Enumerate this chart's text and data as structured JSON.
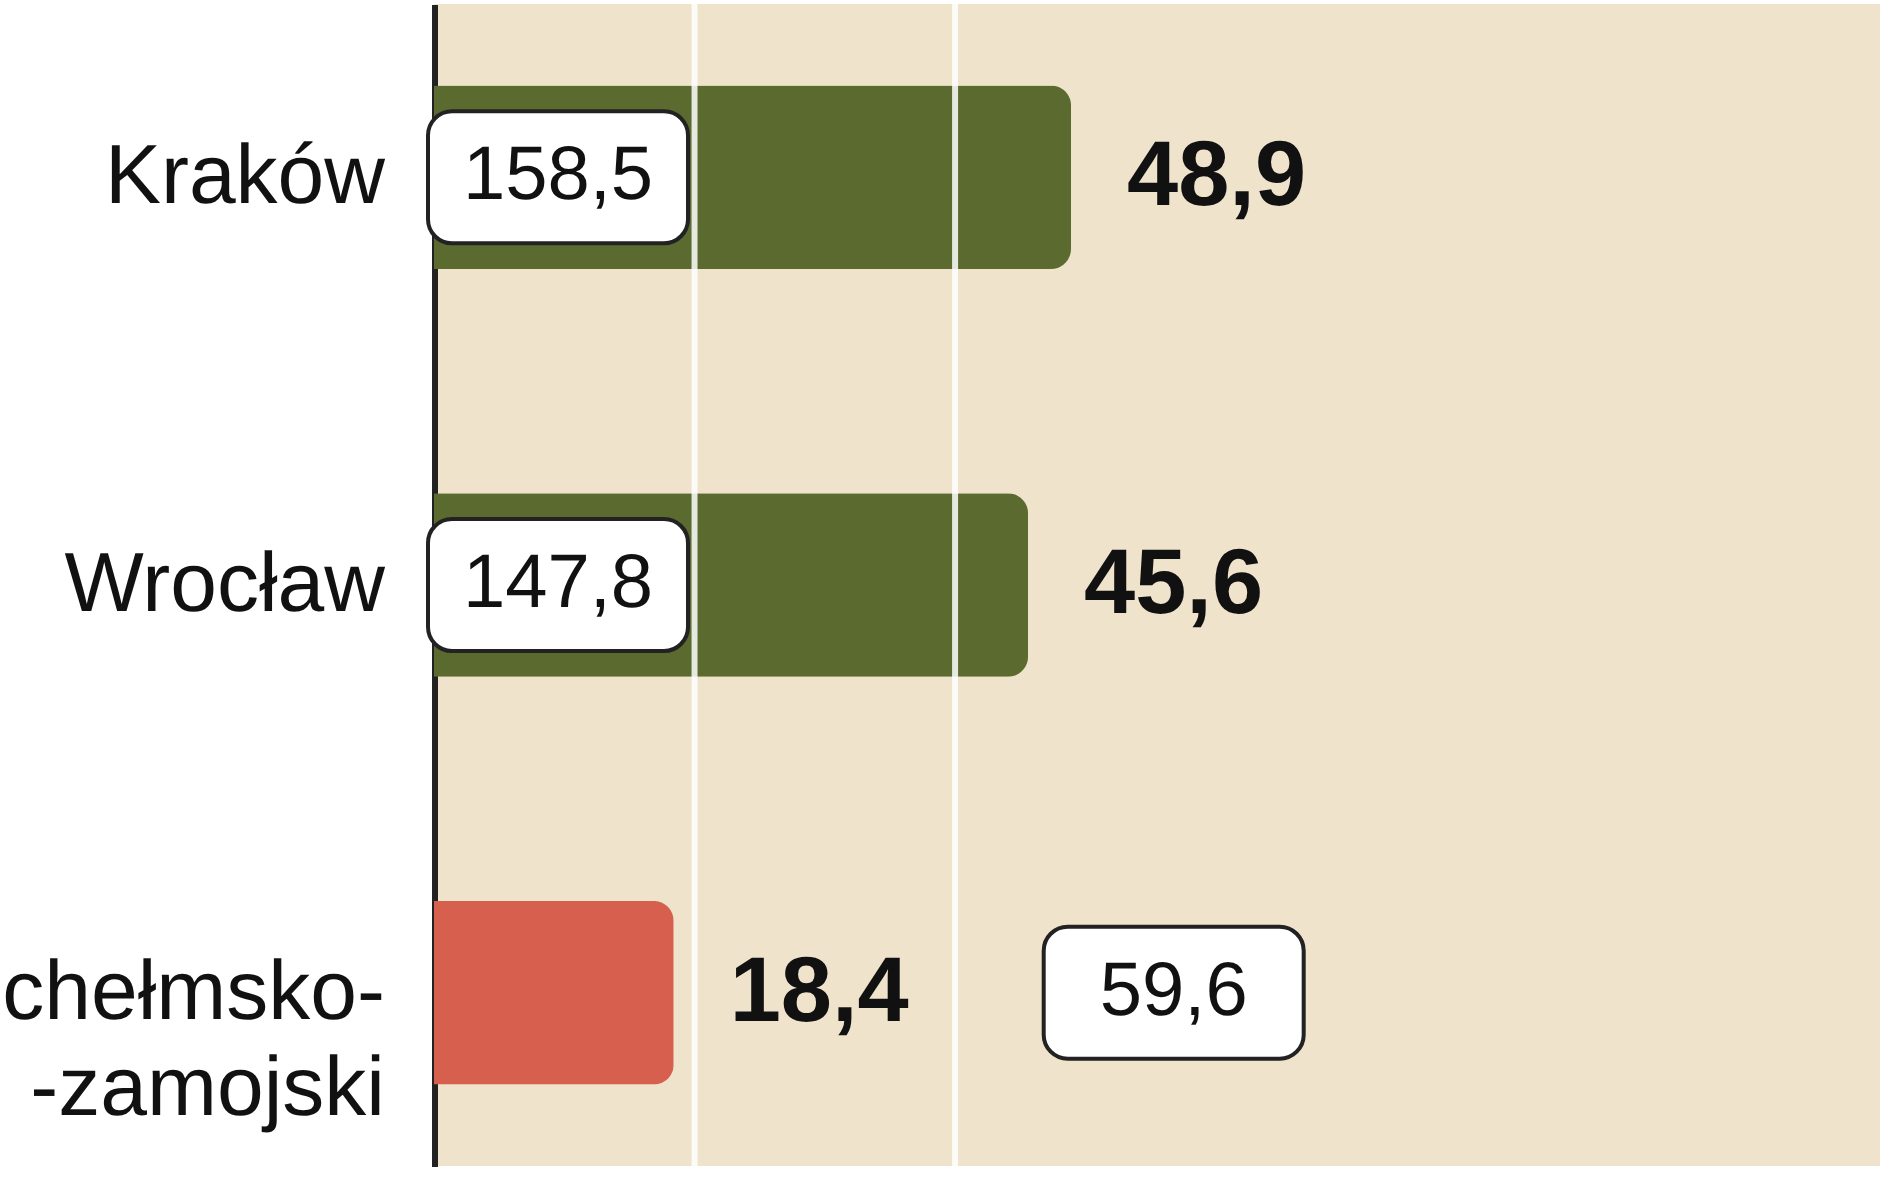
{
  "chart_data": {
    "type": "bar",
    "orientation": "horizontal",
    "categories": [
      "Kraków",
      "Wrocław",
      "chełmsko-\n-zamojski"
    ],
    "values": [
      48.9,
      45.6,
      18.4
    ],
    "colors": [
      "#5b6a2f",
      "#5b6a2f",
      "#d65f4e"
    ],
    "value_labels": [
      "48,9",
      "45,6",
      "18,4"
    ],
    "xlim": [
      0,
      111
    ],
    "ref_lines": [
      {
        "axis": "x",
        "value": 20,
        "color": "#ffffff"
      },
      {
        "axis": "x",
        "value": 40,
        "color": "#ffffff"
      }
    ],
    "tick_labels": "y",
    "annotations": [
      "158,5",
      "147,8",
      "59,6"
    ]
  }
}
